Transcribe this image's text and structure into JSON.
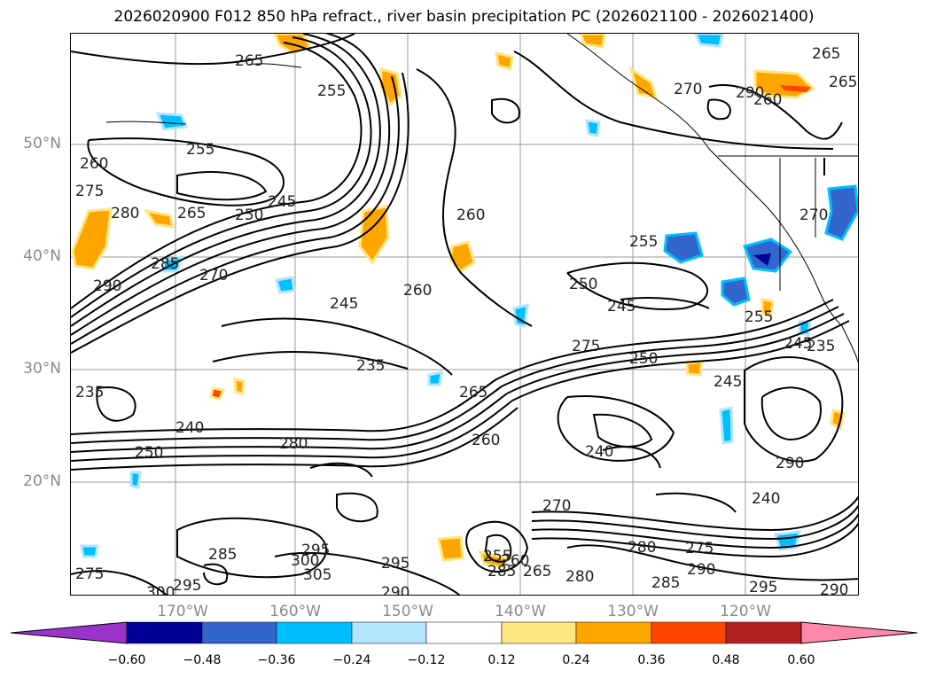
{
  "title": "2026020900 F012 850 hPa refract., river basin precipitation PC (2026021100 - 2026021400)",
  "lat_labels": [
    "50°N",
    "40°N",
    "30°N",
    "20°N"
  ],
  "lon_labels": [
    "170°W",
    "160°W",
    "150°W",
    "140°W",
    "130°W",
    "120°W"
  ],
  "contour_labels": [
    "265",
    "255",
    "260",
    "275",
    "280",
    "265",
    "250",
    "245",
    "255",
    "270",
    "290",
    "285",
    "245",
    "260",
    "235",
    "260",
    "255",
    "250",
    "245",
    "270",
    "275",
    "265",
    "260",
    "255",
    "250",
    "245",
    "235",
    "280",
    "250",
    "240",
    "260",
    "265",
    "240",
    "290",
    "240",
    "280",
    "270",
    "285",
    "275",
    "290",
    "295",
    "300",
    "305",
    "295",
    "285",
    "295",
    "300",
    "275",
    "290",
    "280",
    "290",
    "285",
    "295",
    "265",
    "260",
    "270",
    "245",
    "235",
    "265",
    "255",
    "290"
  ],
  "colorbar": {
    "colors": [
      "#9933cc",
      "#000099",
      "#3366cc",
      "#00bfff",
      "#b3e5ff",
      "#ffffff",
      "#ffe680",
      "#ffa500",
      "#ff4500",
      "#b22222",
      "#ff88aa"
    ],
    "tick_labels": [
      "−0.60",
      "−0.48",
      "−0.36",
      "−0.24",
      "−0.12",
      "0.12",
      "0.24",
      "0.36",
      "0.48",
      "0.60"
    ]
  }
}
